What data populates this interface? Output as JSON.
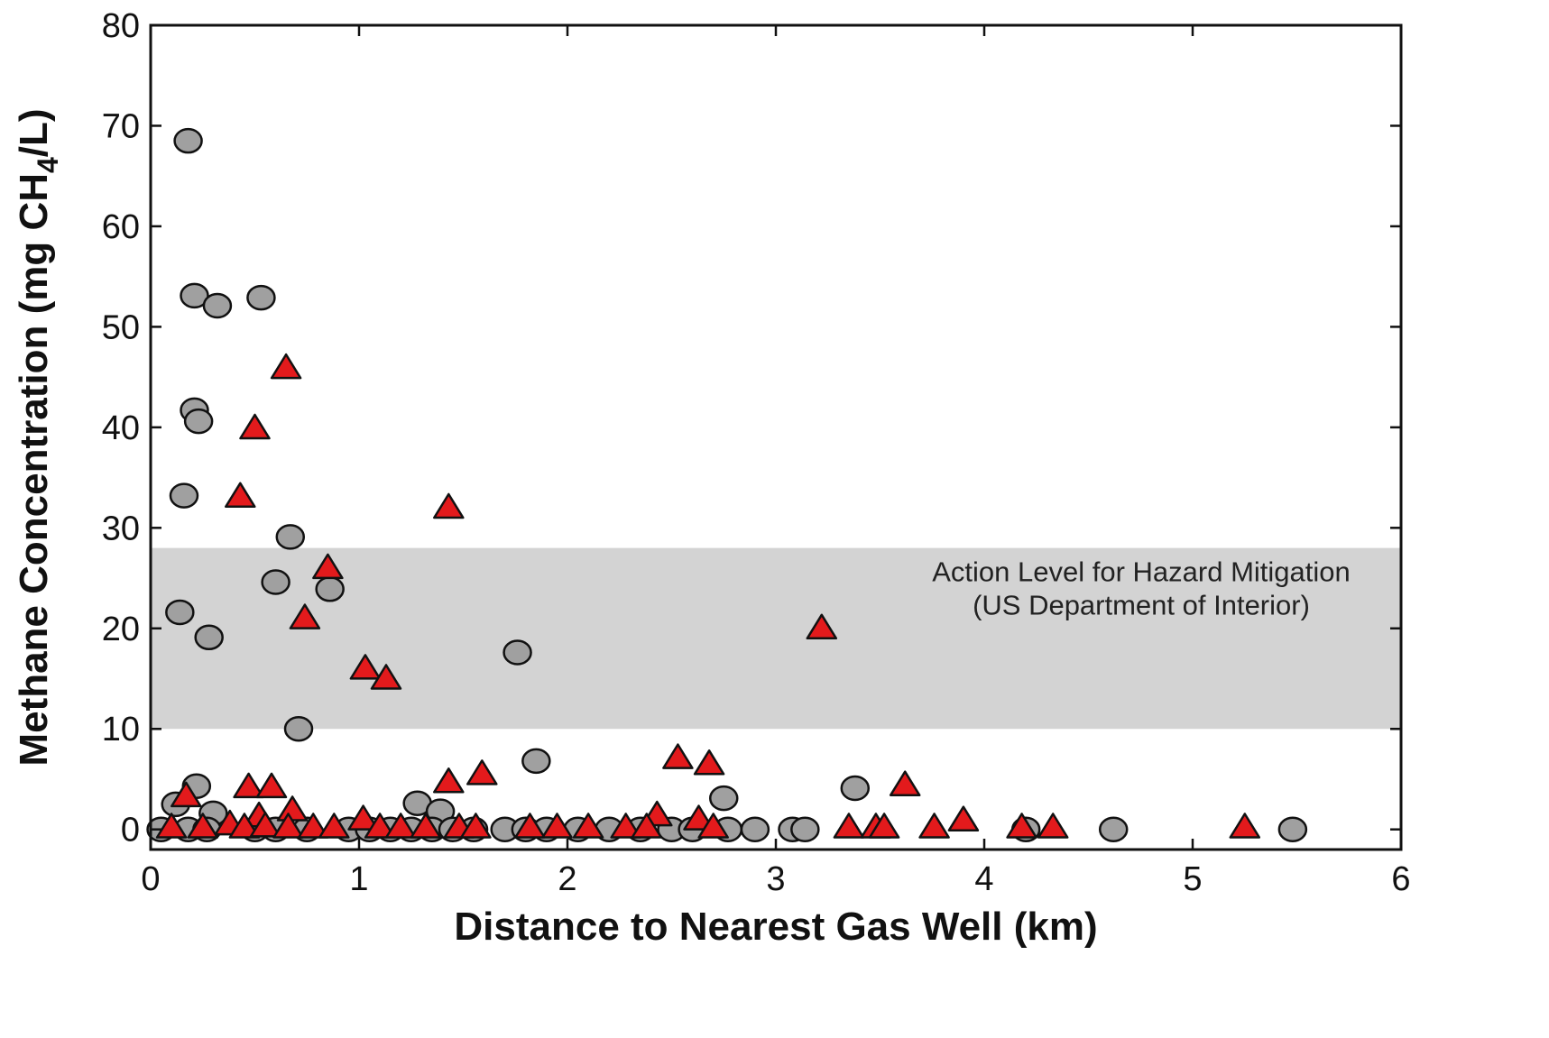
{
  "chart_data": {
    "type": "scatter",
    "title": "",
    "xlabel": "Distance to Nearest Gas Well (km)",
    "ylabel": "Methane Concentration (mg CH",
    "ylabel_subscript": "4",
    "ylabel_suffix": "/L)",
    "xlim": [
      0,
      6
    ],
    "ylim": [
      -2,
      80
    ],
    "xticks": [
      0,
      1,
      2,
      3,
      4,
      5,
      6
    ],
    "yticks": [
      0,
      10,
      20,
      30,
      40,
      50,
      60,
      70,
      80
    ],
    "grid": false,
    "legend": "none",
    "band": {
      "y_from": 10,
      "y_to": 28,
      "color": "#d3d3d3",
      "label_line1": "Action Level for Hazard Mitigation",
      "label_line2": "(US Department of Interior)"
    },
    "series": [
      {
        "marker": "circle",
        "color": "#a0a0a0",
        "points": [
          [
            0.18,
            68.5
          ],
          [
            0.21,
            53.1
          ],
          [
            0.32,
            52.1
          ],
          [
            0.53,
            52.9
          ],
          [
            0.21,
            41.7
          ],
          [
            0.23,
            40.6
          ],
          [
            0.16,
            33.2
          ],
          [
            0.67,
            29.1
          ],
          [
            0.6,
            24.6
          ],
          [
            0.86,
            23.9
          ],
          [
            0.14,
            21.6
          ],
          [
            0.28,
            19.1
          ],
          [
            1.76,
            17.6
          ],
          [
            0.71,
            10.0
          ],
          [
            1.85,
            6.8
          ],
          [
            0.22,
            4.3
          ],
          [
            3.38,
            4.1
          ],
          [
            2.75,
            3.1
          ],
          [
            1.28,
            2.6
          ],
          [
            1.39,
            1.8
          ],
          [
            0.12,
            2.5
          ],
          [
            0.3,
            1.6
          ],
          [
            0.05,
            0.0
          ],
          [
            0.18,
            0.0
          ],
          [
            0.27,
            0.0
          ],
          [
            0.5,
            0.0
          ],
          [
            0.6,
            0.0
          ],
          [
            0.75,
            0.0
          ],
          [
            0.95,
            0.0
          ],
          [
            1.05,
            0.0
          ],
          [
            1.15,
            0.0
          ],
          [
            1.25,
            0.0
          ],
          [
            1.35,
            0.0
          ],
          [
            1.45,
            0.0
          ],
          [
            1.55,
            0.0
          ],
          [
            1.7,
            0.0
          ],
          [
            1.8,
            0.0
          ],
          [
            1.9,
            0.0
          ],
          [
            2.05,
            0.0
          ],
          [
            2.2,
            0.0
          ],
          [
            2.35,
            0.0
          ],
          [
            2.5,
            0.0
          ],
          [
            2.6,
            0.0
          ],
          [
            2.77,
            0.0
          ],
          [
            2.9,
            0.0
          ],
          [
            3.08,
            0.0
          ],
          [
            3.14,
            0.0
          ],
          [
            4.2,
            0.0
          ],
          [
            4.62,
            0.0
          ],
          [
            5.48,
            0.0
          ]
        ]
      },
      {
        "marker": "triangle",
        "color": "#e31a1c",
        "points": [
          [
            0.65,
            45.8
          ],
          [
            0.5,
            39.8
          ],
          [
            0.43,
            33.0
          ],
          [
            1.43,
            31.9
          ],
          [
            0.85,
            25.9
          ],
          [
            0.74,
            20.9
          ],
          [
            3.22,
            19.9
          ],
          [
            1.03,
            15.9
          ],
          [
            1.13,
            14.9
          ],
          [
            2.53,
            7.0
          ],
          [
            2.68,
            6.4
          ],
          [
            1.59,
            5.4
          ],
          [
            1.43,
            4.6
          ],
          [
            0.47,
            4.1
          ],
          [
            0.58,
            4.1
          ],
          [
            3.62,
            4.3
          ],
          [
            0.17,
            3.2
          ],
          [
            0.68,
            1.8
          ],
          [
            0.52,
            1.2
          ],
          [
            2.43,
            1.3
          ],
          [
            2.63,
            0.9
          ],
          [
            3.9,
            0.8
          ],
          [
            0.1,
            0.1
          ],
          [
            0.25,
            0.1
          ],
          [
            0.38,
            0.4
          ],
          [
            0.45,
            0.1
          ],
          [
            0.55,
            0.2
          ],
          [
            0.66,
            0.1
          ],
          [
            0.78,
            0.1
          ],
          [
            0.88,
            0.1
          ],
          [
            1.02,
            0.9
          ],
          [
            1.1,
            0.1
          ],
          [
            1.2,
            0.1
          ],
          [
            1.32,
            0.1
          ],
          [
            1.48,
            0.1
          ],
          [
            1.56,
            0.1
          ],
          [
            1.82,
            0.1
          ],
          [
            1.95,
            0.1
          ],
          [
            2.1,
            0.1
          ],
          [
            2.28,
            0.1
          ],
          [
            2.38,
            0.1
          ],
          [
            2.7,
            0.1
          ],
          [
            3.35,
            0.1
          ],
          [
            3.48,
            0.1
          ],
          [
            3.52,
            0.1
          ],
          [
            3.76,
            0.1
          ],
          [
            4.18,
            0.1
          ],
          [
            4.33,
            0.1
          ],
          [
            5.25,
            0.1
          ]
        ]
      }
    ]
  }
}
